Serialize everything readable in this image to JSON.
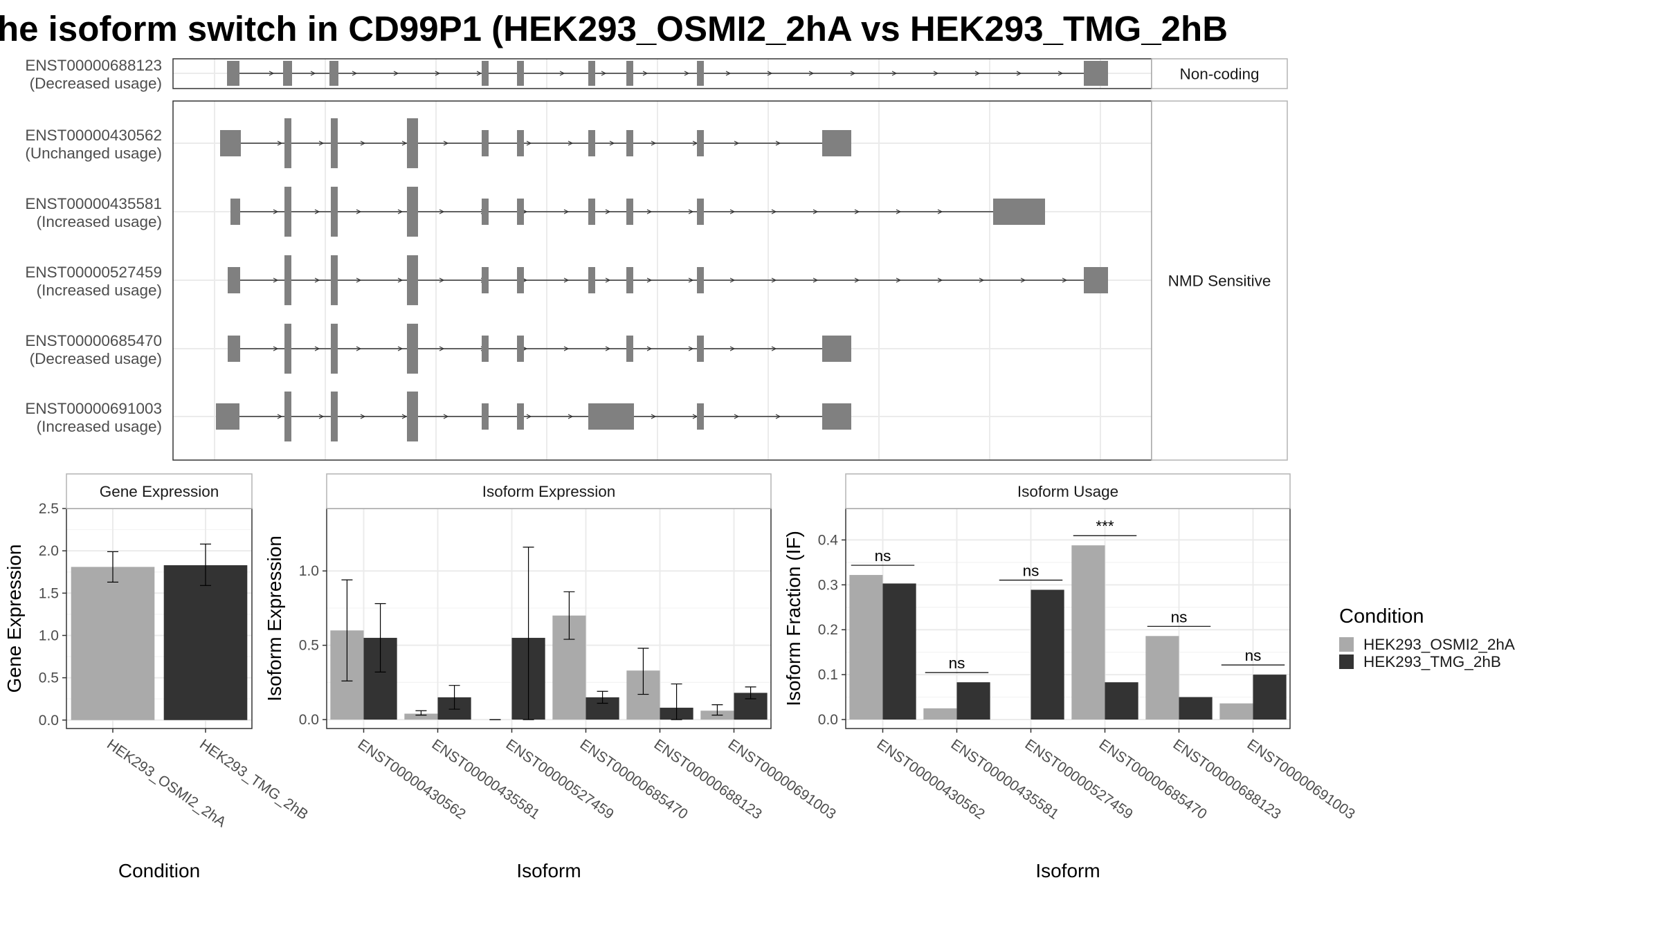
{
  "title": "he isoform switch in CD99P1 (HEK293_OSMI2_2hA vs HEK293_TMG_2hB",
  "colors": {
    "exon": "#808080",
    "condition_a": "#aaaaaa",
    "condition_b": "#333333",
    "grid": "#ebebeb",
    "panel_border": "#333333",
    "strip_border": "#b3b3b3"
  },
  "structure": {
    "groups": [
      "Non-coding",
      "NMD Sensitive"
    ],
    "isoforms": [
      {
        "id": "ENST00000688123",
        "usage": "(Decreased usage)",
        "group": "Non-coding"
      },
      {
        "id": "ENST00000430562",
        "usage": "(Unchanged usage)",
        "group": "NMD Sensitive"
      },
      {
        "id": "ENST00000435581",
        "usage": "(Increased usage)",
        "group": "NMD Sensitive"
      },
      {
        "id": "ENST00000527459",
        "usage": "(Increased usage)",
        "group": "NMD Sensitive"
      },
      {
        "id": "ENST00000685470",
        "usage": "(Decreased usage)",
        "group": "NMD Sensitive"
      },
      {
        "id": "ENST00000691003",
        "usage": "(Increased usage)",
        "group": "NMD Sensitive"
      }
    ]
  },
  "legend": {
    "title": "Condition",
    "items": [
      {
        "label": "HEK293_OSMI2_2hA",
        "color": "#aaaaaa"
      },
      {
        "label": "HEK293_TMG_2hB",
        "color": "#333333"
      }
    ]
  },
  "chart_data": [
    {
      "type": "bar",
      "panel": "Gene Expression",
      "categories": [
        "HEK293_OSMI2_2hA",
        "HEK293_TMG_2hB"
      ],
      "values": [
        1.81,
        1.83
      ],
      "errors": [
        [
          1.63,
          1.99
        ],
        [
          1.59,
          2.08
        ]
      ],
      "xlabel": "Condition",
      "ylabel": "Gene Expression",
      "ylim": [
        -0.1,
        2.5
      ],
      "yticks": [
        0.0,
        0.5,
        1.0,
        1.5,
        2.0,
        2.5
      ],
      "ytick_labels": [
        "0.0",
        "0.5",
        "1.0",
        "1.5",
        "2.0",
        "2.5"
      ],
      "grid": true
    },
    {
      "type": "bar",
      "panel": "Isoform Expression",
      "categories": [
        "ENST00000430562",
        "ENST00000435581",
        "ENST00000527459",
        "ENST00000685470",
        "ENST00000688123",
        "ENST00000691003"
      ],
      "series": [
        {
          "name": "HEK293_OSMI2_2hA",
          "values": [
            0.6,
            0.04,
            0.0,
            0.7,
            0.33,
            0.06
          ],
          "errors": [
            [
              0.26,
              0.94
            ],
            [
              0.03,
              0.06
            ],
            [
              0.0,
              0.0
            ],
            [
              0.54,
              0.86
            ],
            [
              0.17,
              0.48
            ],
            [
              0.03,
              0.1
            ]
          ]
        },
        {
          "name": "HEK293_TMG_2hB",
          "values": [
            0.55,
            0.15,
            0.55,
            0.15,
            0.08,
            0.18
          ],
          "errors": [
            [
              0.32,
              0.78
            ],
            [
              0.07,
              0.23
            ],
            [
              0.0,
              1.16
            ],
            [
              0.11,
              0.19
            ],
            [
              0.0,
              0.24
            ],
            [
              0.14,
              0.22
            ]
          ]
        }
      ],
      "xlabel": "Isoform",
      "ylabel": "Isoform Expression",
      "ylim": [
        -0.06,
        1.42
      ],
      "yticks": [
        0.0,
        0.5,
        1.0
      ],
      "ytick_labels": [
        "0.0",
        "0.5",
        "1.0"
      ],
      "grid": true
    },
    {
      "type": "bar",
      "panel": "Isoform Usage",
      "categories": [
        "ENST00000430562",
        "ENST00000435581",
        "ENST00000527459",
        "ENST00000685470",
        "ENST00000688123",
        "ENST00000691003"
      ],
      "series": [
        {
          "name": "HEK293_OSMI2_2hA",
          "values": [
            0.322,
            0.025,
            0.0,
            0.388,
            0.186,
            0.036
          ]
        },
        {
          "name": "HEK293_TMG_2hB",
          "values": [
            0.303,
            0.083,
            0.289,
            0.083,
            0.05,
            0.1
          ]
        }
      ],
      "significance": [
        "ns",
        "ns",
        "ns",
        "***",
        "ns",
        "ns"
      ],
      "xlabel": "Isoform",
      "ylabel": "Isoform Fraction (IF)",
      "ylim": [
        -0.02,
        0.47
      ],
      "yticks": [
        0.0,
        0.1,
        0.2,
        0.3,
        0.4
      ],
      "ytick_labels": [
        "0.0",
        "0.1",
        "0.2",
        "0.3",
        "0.4"
      ],
      "grid": true
    }
  ]
}
